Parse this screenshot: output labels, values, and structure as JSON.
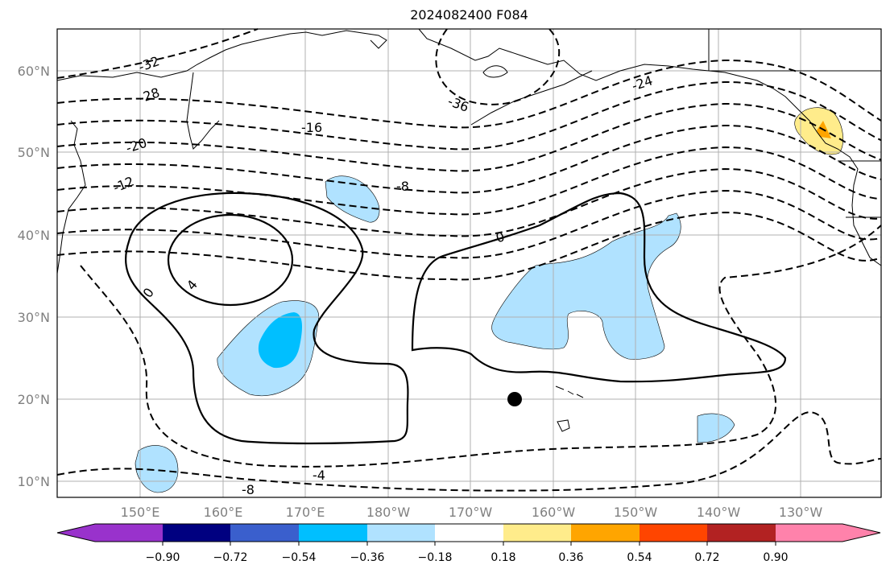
{
  "title": "2024082400 F084",
  "lat_labels": [
    "60°N",
    "50°N",
    "40°N",
    "30°N",
    "20°N",
    "10°N"
  ],
  "lon_labels": [
    "150°E",
    "160°E",
    "170°E",
    "180°W",
    "170°W",
    "160°W",
    "150°W",
    "140°W",
    "130°W"
  ],
  "contour_labels": {
    "m32": "-32",
    "m28": "-28",
    "m20": "-20",
    "m12": "-12",
    "m16": "-16",
    "m36": "-36",
    "m24": "-24",
    "m8a": "-8",
    "zero_left": "0",
    "four": "4",
    "zero_right": "0",
    "m4": "-4",
    "m8b": "-8"
  },
  "colorbar": {
    "colors": [
      "#9932cc",
      "#000080",
      "#3a5fcd",
      "#00bfff",
      "#b0e2ff",
      "#ffffff",
      "#ffec8b",
      "#ffa500",
      "#ff4500",
      "#b22222",
      "#ff82ab"
    ],
    "ticks": [
      "−0.90",
      "−0.72",
      "−0.54",
      "−0.36",
      "−0.18",
      "0.18",
      "0.36",
      "0.54",
      "0.72",
      "0.90"
    ]
  },
  "colors": {
    "light_blue": "#b0e2ff",
    "cyan": "#00bfff",
    "yellow": "#ffec8b",
    "orange": "#ffa500"
  }
}
